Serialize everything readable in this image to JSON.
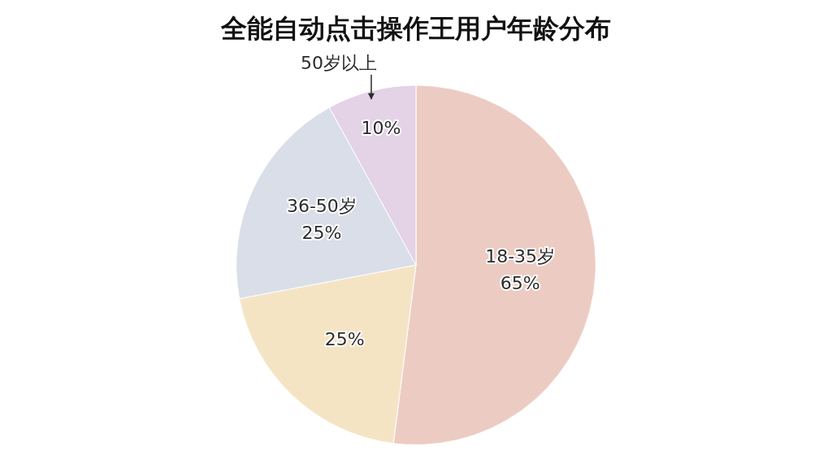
{
  "chart_data": {
    "type": "pie",
    "title": "全能自动点击操作王用户年龄分布",
    "categories": [
      "18-35岁",
      null,
      "36-50岁",
      "50岁以上"
    ],
    "values": [
      65,
      25,
      25,
      10
    ],
    "value_labels": [
      "65%",
      "25%",
      "25%",
      "10%"
    ],
    "colors": [
      "#ecccc2",
      "#f5e4c4",
      "#d9dee9",
      "#e4d2e7"
    ],
    "data_labels": true,
    "legend": "none"
  }
}
